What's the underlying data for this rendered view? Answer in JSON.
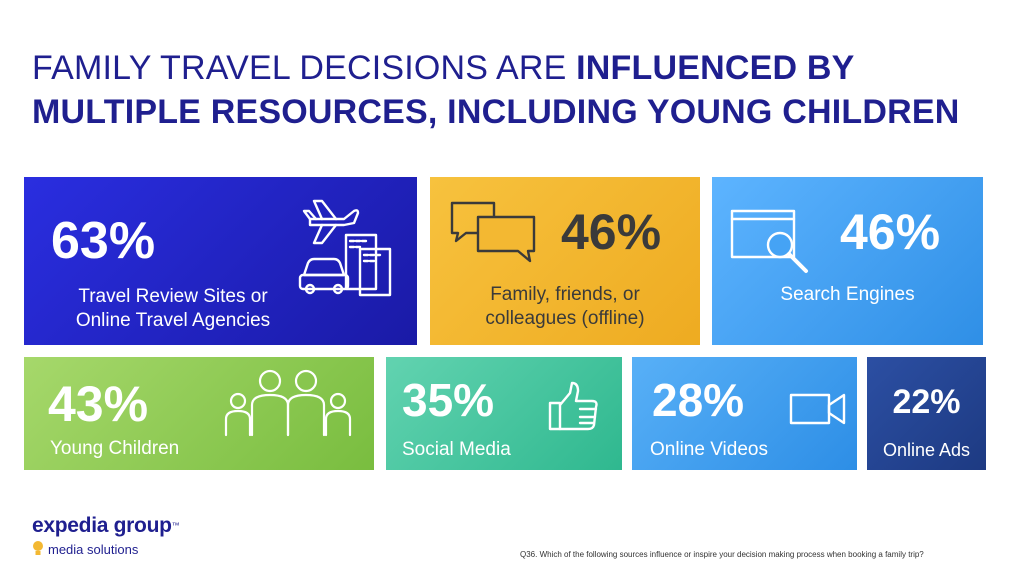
{
  "title": {
    "light": "FAMILY TRAVEL DECISIONS ARE ",
    "bold_1": "INFLUENCED BY",
    "bold_2": "MULTIPLE RESOURCES, INCLUDING YOUNG CHILDREN"
  },
  "tiles": [
    {
      "id": "travel",
      "pct": "63%",
      "label_1": "Travel Review Sites or",
      "label_2": "Online Travel Agencies",
      "icon": "plane-car-building-icon",
      "color": "#1f22c8"
    },
    {
      "id": "family",
      "pct": "46%",
      "label_1": "Family, friends, or",
      "label_2": "colleagues (offline)",
      "icon": "chat-bubbles-icon",
      "color": "#f3b832"
    },
    {
      "id": "search",
      "pct": "46%",
      "label_1": "Search Engines",
      "icon": "browser-magnifier-icon",
      "color": "#45a3f5"
    },
    {
      "id": "children",
      "pct": "43%",
      "label_1": "Young Children",
      "icon": "family-people-icon",
      "color": "#8fcb56"
    },
    {
      "id": "social",
      "pct": "35%",
      "label_1": "Social Media",
      "icon": "thumbs-up-icon",
      "color": "#45c6a0"
    },
    {
      "id": "videos",
      "pct": "28%",
      "label_1": "Online Videos",
      "icon": "video-camera-icon",
      "color": "#429fef"
    },
    {
      "id": "ads",
      "pct": "22%",
      "label_1": "Online Ads",
      "color": "#254593"
    }
  ],
  "brand": {
    "name": "expedia group",
    "tm": "™",
    "sub": "media solutions"
  },
  "footnote": "Q36. Which of the following sources influence or inspire your decision making process when booking a family trip?"
}
